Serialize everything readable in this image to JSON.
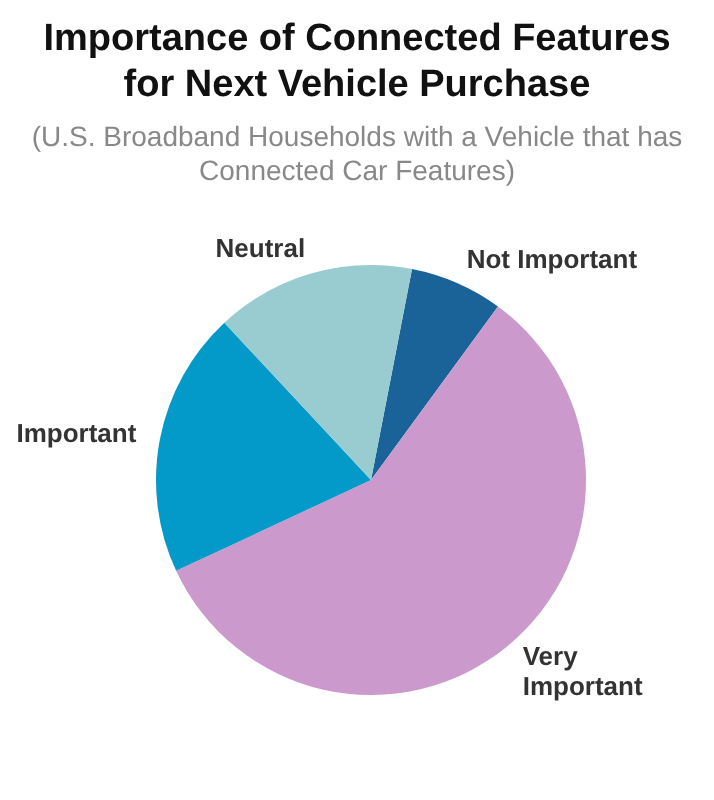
{
  "chart_data": {
    "type": "pie",
    "title": "Importance of Connected Features for Next Vehicle Purchase",
    "subtitle": "(U.S. Broadband Households with a Vehicle that has Connected Car Features)",
    "categories": [
      "Not Important",
      "Very Important",
      "Important",
      "Neutral"
    ],
    "values": [
      7,
      58,
      20,
      15
    ],
    "colors": [
      "#1a6399",
      "#cc99cc",
      "#0399c9",
      "#99ccd1"
    ],
    "legend": false
  }
}
